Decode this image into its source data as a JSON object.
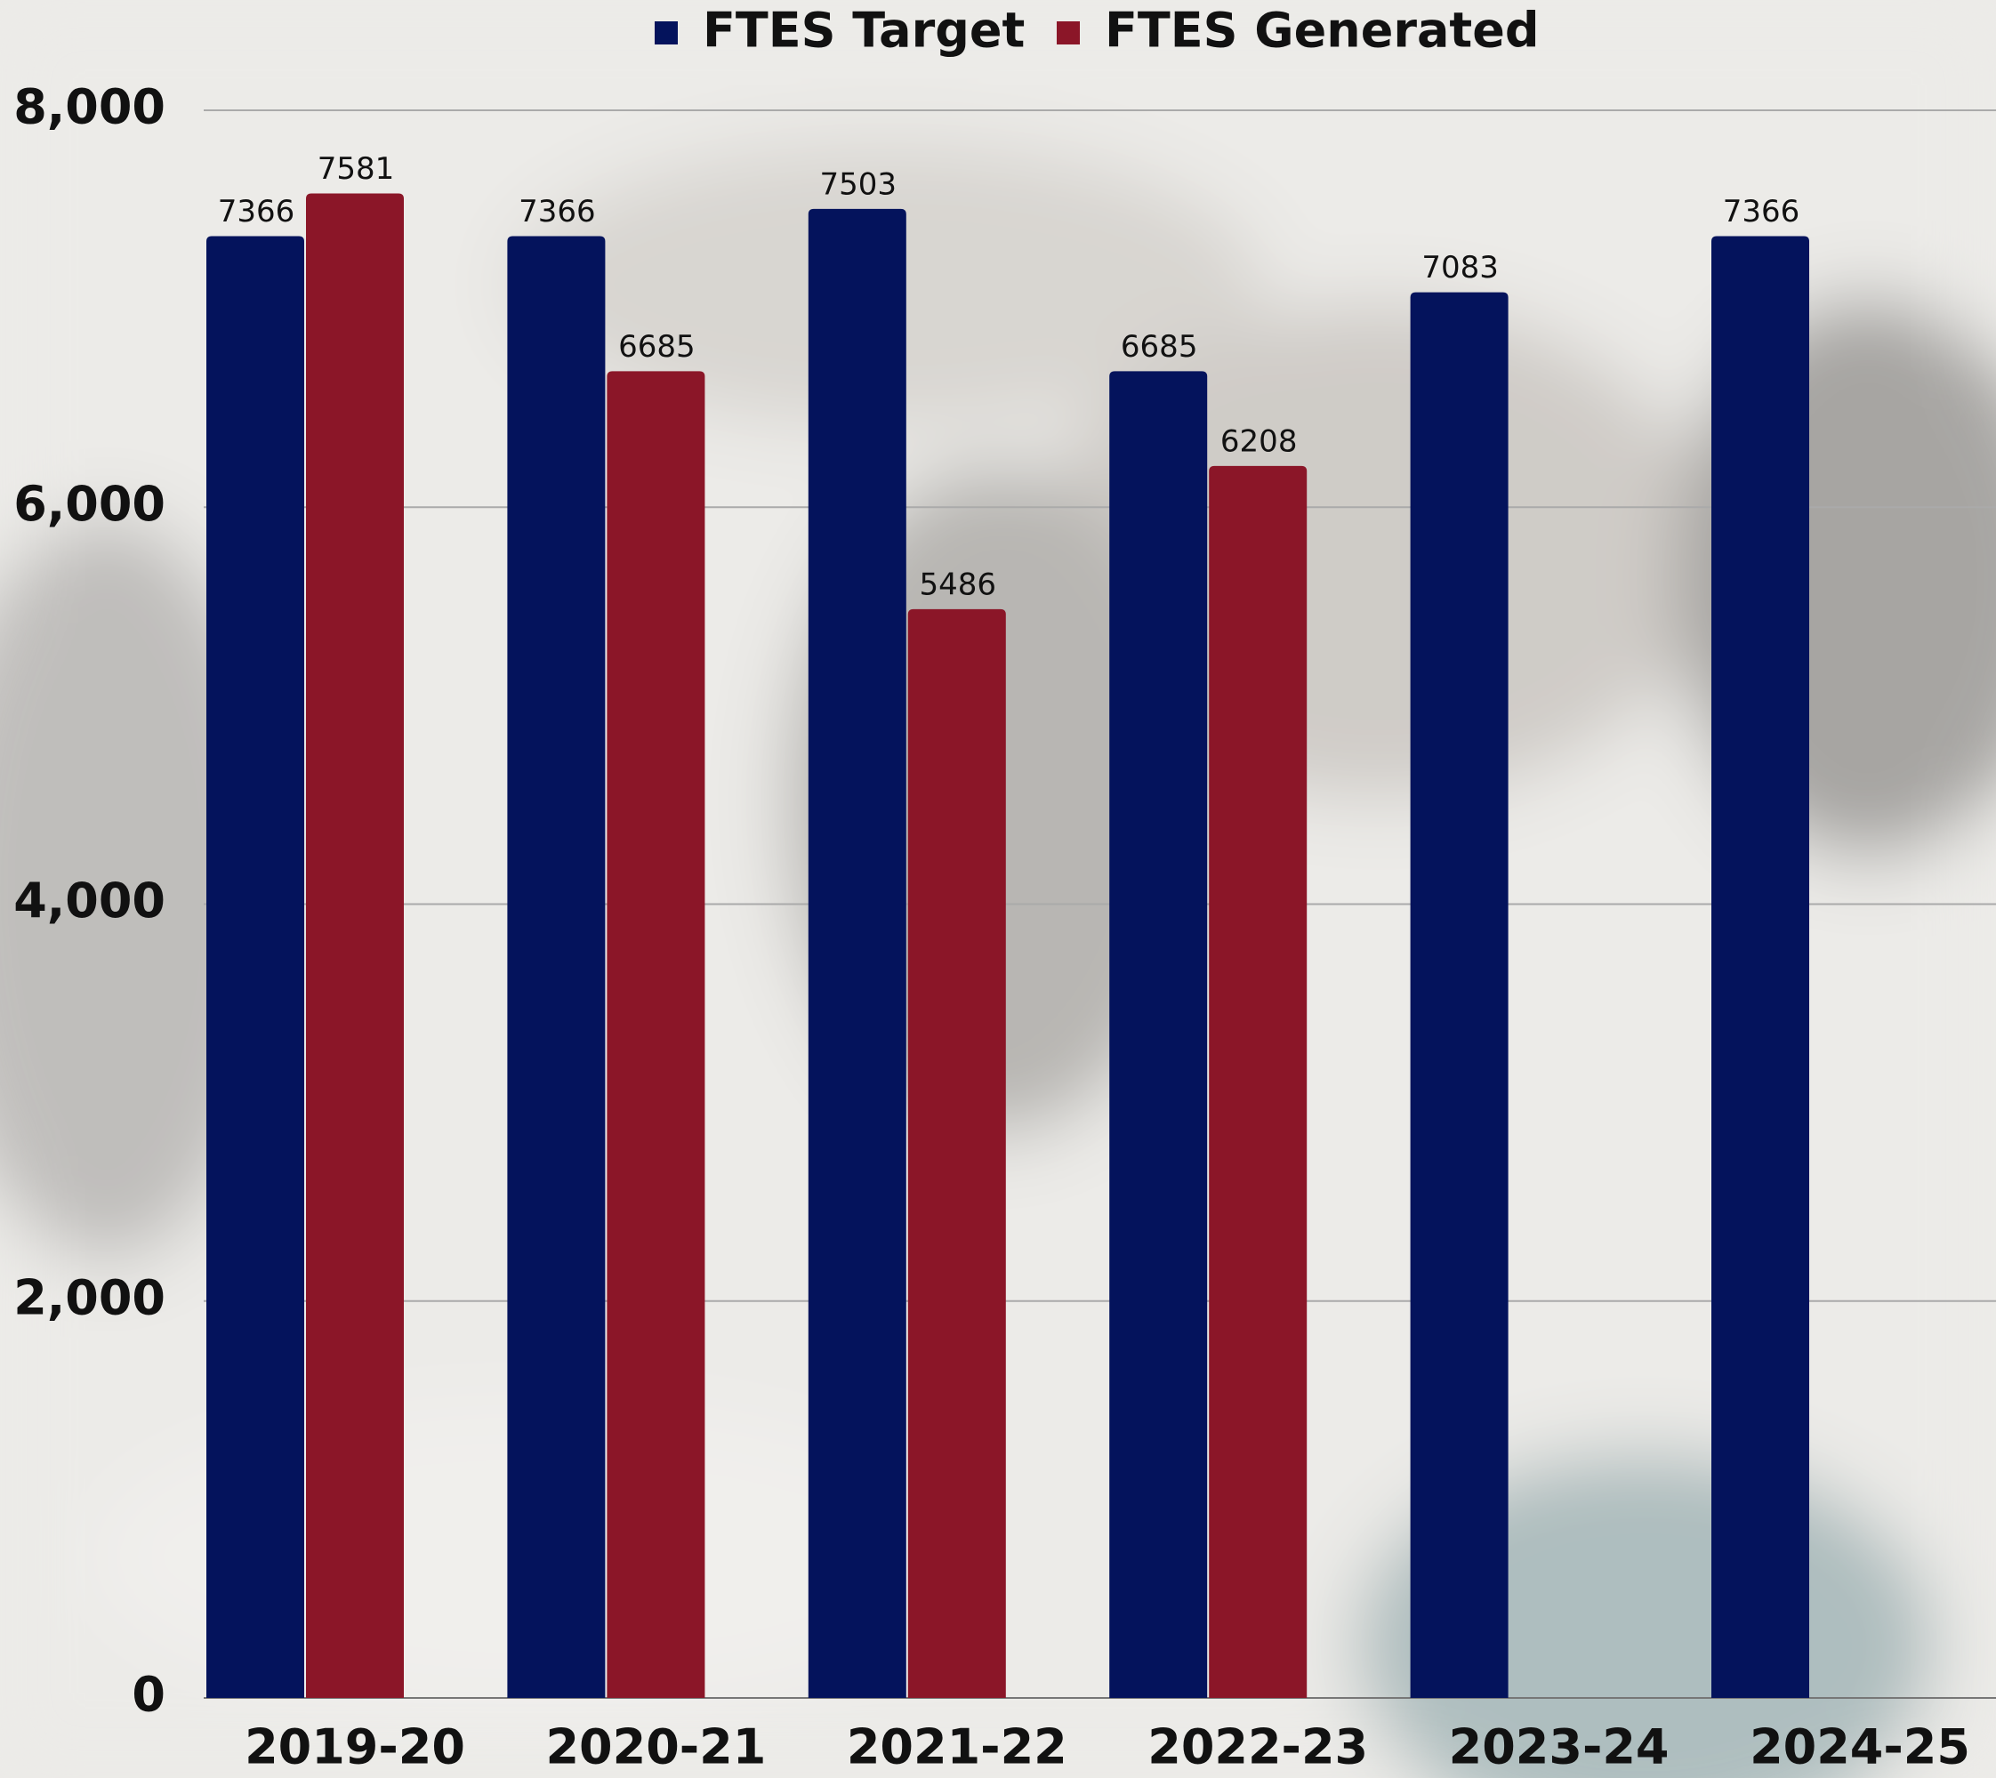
{
  "chart_data": {
    "type": "bar",
    "categories": [
      "2019-20",
      "2020-21",
      "2021-22",
      "2022-23",
      "2023-24",
      "2024-25"
    ],
    "series": [
      {
        "name": "FTES Target",
        "color": "#04135c",
        "values": [
          7366,
          7366,
          7503,
          6685,
          7083,
          7366
        ]
      },
      {
        "name": "FTES Generated",
        "color": "#8b1628",
        "values": [
          7581,
          6685,
          5486,
          6208,
          null,
          null
        ]
      }
    ],
    "ylim": [
      0,
      8000
    ],
    "yticks": [
      0,
      {
        "value": 2000,
        "label": "2,000"
      },
      {
        "value": 4000,
        "label": "4,000"
      },
      {
        "value": 6000,
        "label": "6,000"
      },
      {
        "value": 8000,
        "label": "8,000"
      }
    ],
    "grid": true
  }
}
